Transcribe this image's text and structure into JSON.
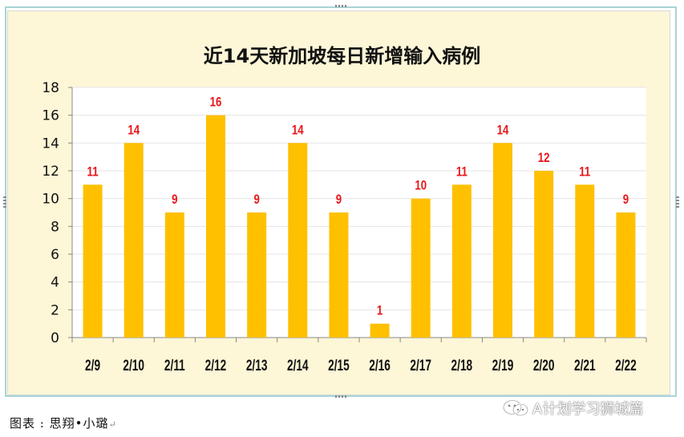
{
  "chart_data": {
    "type": "bar",
    "title": "近14天新加坡每日新增输入病例",
    "categories": [
      "2/9",
      "2/10",
      "2/11",
      "2/12",
      "2/13",
      "2/14",
      "2/15",
      "2/16",
      "2/17",
      "2/18",
      "2/19",
      "2/20",
      "2/21",
      "2/22"
    ],
    "values": [
      11,
      14,
      9,
      16,
      9,
      14,
      9,
      1,
      10,
      11,
      14,
      12,
      11,
      9
    ],
    "ylim": [
      0,
      18
    ],
    "yticks": [
      0,
      2,
      4,
      6,
      8,
      10,
      12,
      14,
      16,
      18
    ],
    "grid": true,
    "legend": "none",
    "colors": {
      "bar": "#ffc000",
      "data_label": "#e8161a",
      "plot_bg": "#ffffff",
      "chart_bg": "#fdf6d7"
    }
  },
  "caption": {
    "text": "图表 : 思翔•小璐"
  },
  "watermark": {
    "text": "A计划学习狮城篇",
    "icon": "wechat-icon"
  }
}
